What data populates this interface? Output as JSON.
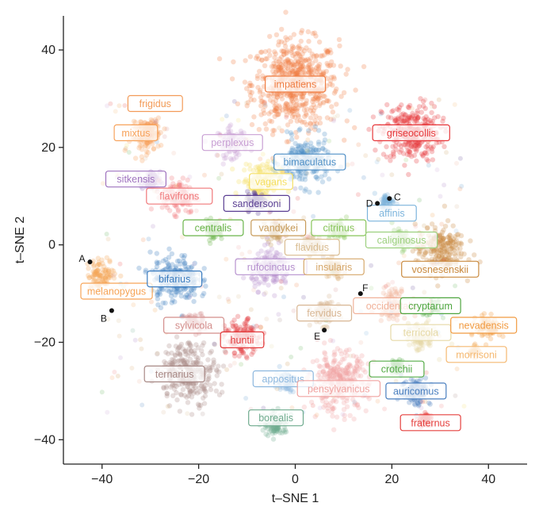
{
  "chart_data": {
    "type": "scatter",
    "xlabel": "t–SNE 1",
    "ylabel": "t–SNE 2",
    "xlim": [
      -48,
      48
    ],
    "ylim": [
      -45,
      47
    ],
    "xticks": [
      -40,
      -20,
      0,
      20,
      40
    ],
    "yticks": [
      -40,
      -20,
      0,
      20,
      40
    ],
    "xtick_labels": [
      "−40",
      "−20",
      "0",
      "20",
      "40"
    ],
    "ytick_labels": [
      "−40",
      "−20",
      "0",
      "20",
      "40"
    ],
    "grid": false,
    "clusters": [
      {
        "name": "impatiens",
        "x": 0,
        "y": 33,
        "r": 9,
        "color": "#f07f45",
        "label_x": 0,
        "label_y": 33
      },
      {
        "name": "griseocollis",
        "x": 24,
        "y": 23,
        "r": 6,
        "color": "#e7373a",
        "label_x": 24,
        "label_y": 23
      },
      {
        "name": "frigidus",
        "x": -30,
        "y": 24,
        "r": 2,
        "color": "#f39b58",
        "label_x": -29,
        "label_y": 29
      },
      {
        "name": "mixtus",
        "x": -31,
        "y": 22,
        "r": 3,
        "color": "#f7a35c",
        "label_x": -33,
        "label_y": 23
      },
      {
        "name": "perplexus",
        "x": -13,
        "y": 21,
        "r": 3,
        "color": "#c9a0d4",
        "label_x": -13,
        "label_y": 21
      },
      {
        "name": "bimaculatus",
        "x": 2,
        "y": 17,
        "r": 5,
        "color": "#4f8fc6",
        "label_x": 3,
        "label_y": 17
      },
      {
        "name": "vagans",
        "x": -7,
        "y": 13,
        "r": 4,
        "color": "#f5df62",
        "label_x": -5,
        "label_y": 13
      },
      {
        "name": "sitkensis",
        "x": -30,
        "y": 13,
        "r": 2,
        "color": "#9f73bf",
        "label_x": -33,
        "label_y": 13.5
      },
      {
        "name": "flavifrons",
        "x": -24,
        "y": 10,
        "r": 3.5,
        "color": "#f0787a",
        "label_x": -24,
        "label_y": 10
      },
      {
        "name": "sandersoni",
        "x": -8,
        "y": 9,
        "r": 2,
        "color": "#5a3e92",
        "label_x": -8,
        "label_y": 8.5
      },
      {
        "name": "affinis",
        "x": 19,
        "y": 9,
        "r": 1.5,
        "color": "#7cb4dc",
        "label_x": 20,
        "label_y": 6.5
      },
      {
        "name": "centralis",
        "x": -17,
        "y": 3,
        "r": 2,
        "color": "#6ab44a",
        "label_x": -17,
        "label_y": 3.5
      },
      {
        "name": "vandykei",
        "x": -4,
        "y": 3,
        "r": 2,
        "color": "#c79b5a",
        "label_x": -3.5,
        "label_y": 3.5
      },
      {
        "name": "citrinus",
        "x": 9,
        "y": 3,
        "r": 2,
        "color": "#87c45a",
        "label_x": 9,
        "label_y": 3.5
      },
      {
        "name": "caliginosus",
        "x": 22,
        "y": 1,
        "r": 2,
        "color": "#9dd07f",
        "label_x": 22,
        "label_y": 1
      },
      {
        "name": "vosnesenskii",
        "x": 30,
        "y": -1,
        "r": 5,
        "color": "#c98a3f",
        "label_x": 30,
        "label_y": -5
      },
      {
        "name": "flavidus",
        "x": 3.5,
        "y": 0,
        "r": 2,
        "color": "#d9bc91",
        "label_x": 3.5,
        "label_y": -0.5
      },
      {
        "name": "melanopygus",
        "x": -40,
        "y": -6,
        "r": 3,
        "color": "#f6a457",
        "label_x": -37,
        "label_y": -9.5
      },
      {
        "name": "bifarius",
        "x": -25,
        "y": -7,
        "r": 5,
        "color": "#3c7dc0",
        "label_x": -25,
        "label_y": -7
      },
      {
        "name": "rufocinctus",
        "x": -5,
        "y": -5,
        "r": 4,
        "color": "#b691ce",
        "label_x": -5,
        "label_y": -4.5
      },
      {
        "name": "insularis",
        "x": 8,
        "y": -5,
        "r": 2,
        "color": "#d6a86b",
        "label_x": 8,
        "label_y": -4.5
      },
      {
        "name": "occidentalis",
        "x": 20,
        "y": -12,
        "r": 3,
        "color": "#f1b29a",
        "label_x": 20,
        "label_y": -12.5
      },
      {
        "name": "cryptarum",
        "x": 28,
        "y": -13,
        "r": 1.5,
        "color": "#4fa640",
        "label_x": 28,
        "label_y": -12.5
      },
      {
        "name": "fervidus",
        "x": 6,
        "y": -14,
        "r": 2.5,
        "color": "#d8b693",
        "label_x": 6,
        "label_y": -14
      },
      {
        "name": "terricola",
        "x": 26,
        "y": -19,
        "r": 3,
        "color": "#e6d9a6",
        "label_x": 26,
        "label_y": -18
      },
      {
        "name": "nevadensis",
        "x": 40,
        "y": -17,
        "r": 2.5,
        "color": "#f19a40",
        "label_x": 39,
        "label_y": -16.5
      },
      {
        "name": "morrisoni",
        "x": 37,
        "y": -22,
        "r": 1,
        "color": "#f5b870",
        "label_x": 37.5,
        "label_y": -22.5
      },
      {
        "name": "sylvicola",
        "x": -21,
        "y": -16,
        "r": 2,
        "color": "#d38d8b",
        "label_x": -21,
        "label_y": -16.5
      },
      {
        "name": "huntii",
        "x": -11,
        "y": -19,
        "r": 3.5,
        "color": "#e33b3c",
        "label_x": -11,
        "label_y": -19.5
      },
      {
        "name": "ternarius",
        "x": -22,
        "y": -26,
        "r": 6,
        "color": "#a88986",
        "label_x": -25,
        "label_y": -26.5
      },
      {
        "name": "crotchii",
        "x": 21,
        "y": -25,
        "r": 1.5,
        "color": "#55ac48",
        "label_x": 21,
        "label_y": -25.5
      },
      {
        "name": "appositus",
        "x": -2,
        "y": -28,
        "r": 2,
        "color": "#8cb7de",
        "label_x": -2.5,
        "label_y": -27.5
      },
      {
        "name": "pensylvanicus",
        "x": 9,
        "y": -28,
        "r": 6,
        "color": "#f0a3a0",
        "label_x": 9,
        "label_y": -29.5
      },
      {
        "name": "auricomus",
        "x": 25,
        "y": -30,
        "r": 3,
        "color": "#4a7fbf",
        "label_x": 25,
        "label_y": -30
      },
      {
        "name": "borealis",
        "x": -4,
        "y": -37,
        "r": 2.5,
        "color": "#6fab8e",
        "label_x": -4,
        "label_y": -35.5
      },
      {
        "name": "fraternus",
        "x": 27,
        "y": -36,
        "r": 1.5,
        "color": "#e5403e",
        "label_x": 28,
        "label_y": -36.5
      }
    ],
    "points": [
      {
        "name": "A",
        "x": -42.5,
        "y": -3.5
      },
      {
        "name": "B",
        "x": -38,
        "y": -13.5
      },
      {
        "name": "C",
        "x": 19.5,
        "y": 9.5
      },
      {
        "name": "D",
        "x": 17,
        "y": 8.5
      },
      {
        "name": "E",
        "x": 6,
        "y": -17.5
      },
      {
        "name": "F",
        "x": 13.5,
        "y": -10
      }
    ]
  }
}
